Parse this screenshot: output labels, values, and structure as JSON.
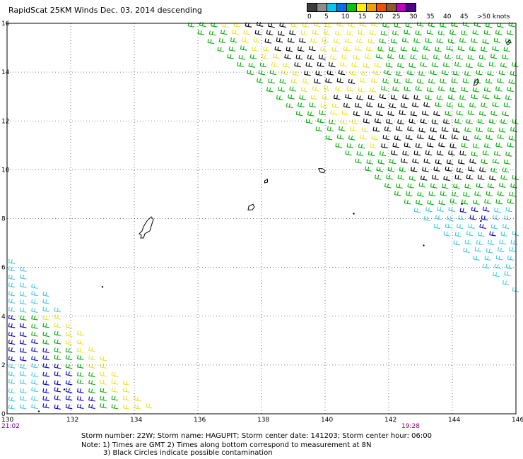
{
  "title": "RapidScat 25KM Winds Dec. 03, 2014 descending",
  "legend": {
    "labels": [
      "0",
      "5",
      "10",
      "15",
      "20",
      "25",
      "30",
      "35",
      "40",
      "45",
      ">50 knots"
    ],
    "colors": [
      "#3c3c3c",
      "#8c8c8c",
      "#00c8f0",
      "#0070f0",
      "#00c800",
      "#fff000",
      "#f0a000",
      "#f05000",
      "#8c5a28",
      "#c000c0",
      "#50008c"
    ]
  },
  "map": {
    "x_ticks": [
      "130",
      "132",
      "134",
      "136",
      "138",
      "140",
      "142",
      "144",
      "146"
    ],
    "y_ticks": [
      "16",
      "14",
      "12",
      "10",
      "8",
      "6",
      "4",
      "2",
      "0"
    ],
    "lon_range": [
      130,
      146
    ],
    "lat_range": [
      0,
      16
    ],
    "wind_colors": {
      "black": "#000000",
      "yellow": "#f0e020",
      "green": "#00b000",
      "blue": "#0000c8",
      "cyan": "#40c8e8"
    }
  },
  "times": {
    "left": "21:02",
    "right": "19:28"
  },
  "footer": {
    "storm_line": "Storm number: 22W;  Storm name: HAGUPIT;  Storm center date: 141203;  Storm center hour: 06:00",
    "note_line1": "Note: 1) Times are GMT  2) Times along bottom correspond to measurement at 8N",
    "note_line2": "3) Black Circles indicate possible contamination"
  }
}
